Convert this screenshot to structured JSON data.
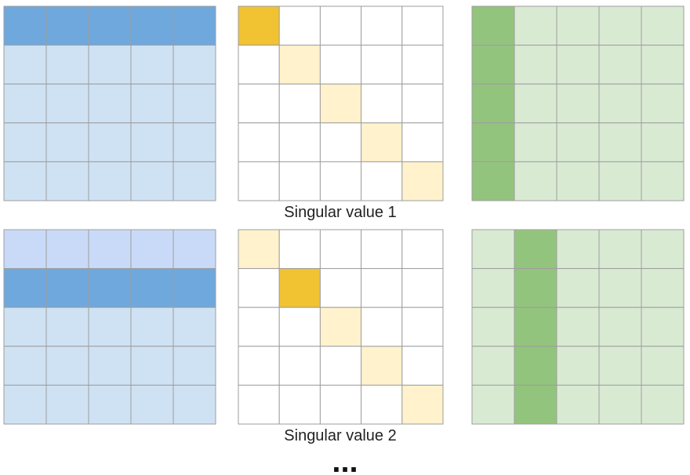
{
  "rows": [
    {
      "label": "Singular value 1"
    },
    {
      "label": "Singular value 2"
    }
  ],
  "ellipsis": "..."
}
